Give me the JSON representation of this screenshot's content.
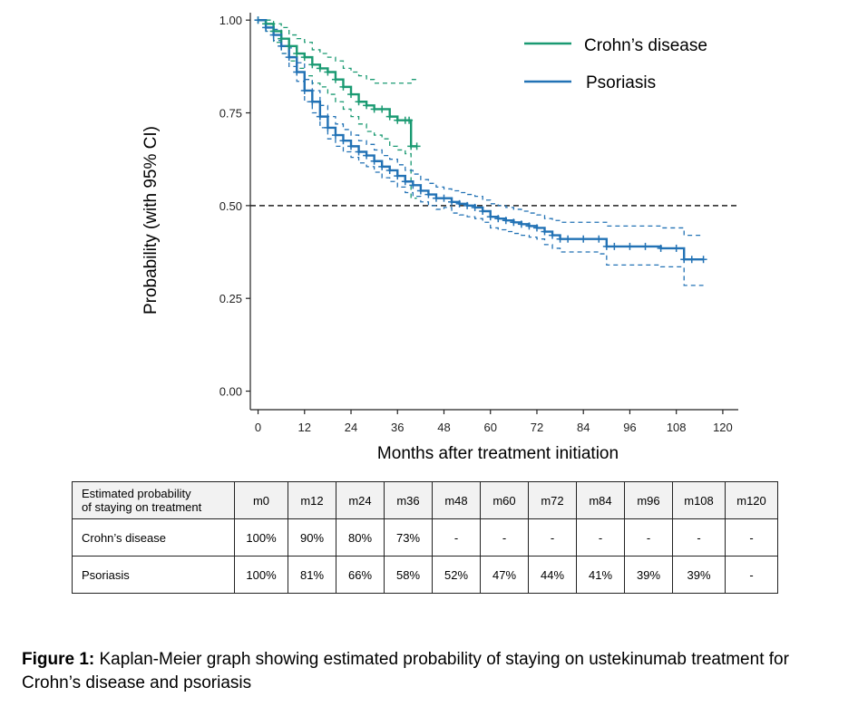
{
  "chart_data": {
    "type": "line",
    "title": "",
    "xlabel": "Months after treatment initiation",
    "ylabel": "Probability (with 95% CI)",
    "xlim": [
      -2,
      124
    ],
    "ylim": [
      -0.05,
      1.02
    ],
    "xticks": [
      0,
      12,
      24,
      36,
      48,
      60,
      72,
      84,
      96,
      108,
      120
    ],
    "yticks": [
      0.0,
      0.25,
      0.5,
      0.75,
      1.0
    ],
    "ytick_labels": [
      "0.00",
      "0.25",
      "0.50",
      "0.75",
      "1.00"
    ],
    "reference_line": {
      "y": 0.5,
      "style": "dashed",
      "color": "#222222"
    },
    "legend": {
      "placement": "top-right"
    },
    "series": [
      {
        "name": "Crohn’s disease",
        "color": "#1a9a72",
        "x": [
          0,
          2,
          4,
          6,
          8,
          10,
          12,
          14,
          16,
          18,
          20,
          22,
          24,
          26,
          28,
          30,
          32,
          34,
          36,
          38,
          39,
          39.5,
          41
        ],
        "y": [
          1.0,
          0.99,
          0.97,
          0.95,
          0.93,
          0.91,
          0.9,
          0.88,
          0.87,
          0.86,
          0.84,
          0.82,
          0.8,
          0.78,
          0.77,
          0.76,
          0.76,
          0.74,
          0.73,
          0.73,
          0.73,
          0.66,
          0.66
        ],
        "ci_upper": [
          1.0,
          1.0,
          0.99,
          0.98,
          0.96,
          0.95,
          0.94,
          0.92,
          0.91,
          0.9,
          0.89,
          0.87,
          0.86,
          0.85,
          0.84,
          0.83,
          0.83,
          0.83,
          0.83,
          0.83,
          0.83,
          0.84,
          0.84
        ],
        "ci_lower": [
          1.0,
          0.97,
          0.94,
          0.91,
          0.89,
          0.87,
          0.85,
          0.83,
          0.82,
          0.8,
          0.78,
          0.76,
          0.74,
          0.72,
          0.7,
          0.69,
          0.68,
          0.66,
          0.65,
          0.64,
          0.64,
          0.52,
          0.52
        ]
      },
      {
        "name": "Psoriasis",
        "color": "#2272b5",
        "x": [
          0,
          2,
          4,
          6,
          8,
          10,
          12,
          14,
          16,
          18,
          20,
          22,
          24,
          26,
          28,
          30,
          32,
          34,
          36,
          38,
          40,
          42,
          44,
          46,
          48,
          50,
          52,
          54,
          56,
          58,
          60,
          62,
          64,
          66,
          68,
          70,
          72,
          74,
          76,
          78,
          80,
          84,
          88,
          90,
          92,
          96,
          100,
          104,
          108,
          110,
          112,
          115
        ],
        "y": [
          1.0,
          0.98,
          0.96,
          0.93,
          0.9,
          0.86,
          0.81,
          0.78,
          0.74,
          0.71,
          0.69,
          0.675,
          0.66,
          0.645,
          0.635,
          0.62,
          0.605,
          0.595,
          0.58,
          0.565,
          0.555,
          0.54,
          0.53,
          0.52,
          0.52,
          0.51,
          0.505,
          0.5,
          0.495,
          0.485,
          0.47,
          0.465,
          0.46,
          0.455,
          0.45,
          0.445,
          0.44,
          0.43,
          0.42,
          0.41,
          0.41,
          0.41,
          0.41,
          0.39,
          0.39,
          0.39,
          0.39,
          0.385,
          0.385,
          0.355,
          0.355,
          0.355
        ],
        "ci_upper": [
          1.0,
          0.99,
          0.975,
          0.95,
          0.925,
          0.885,
          0.84,
          0.81,
          0.77,
          0.74,
          0.72,
          0.705,
          0.69,
          0.675,
          0.665,
          0.65,
          0.635,
          0.625,
          0.61,
          0.595,
          0.585,
          0.57,
          0.56,
          0.55,
          0.545,
          0.54,
          0.535,
          0.53,
          0.525,
          0.515,
          0.505,
          0.5,
          0.495,
          0.49,
          0.485,
          0.48,
          0.475,
          0.465,
          0.46,
          0.455,
          0.455,
          0.455,
          0.455,
          0.445,
          0.445,
          0.445,
          0.445,
          0.44,
          0.44,
          0.42,
          0.42,
          0.42
        ],
        "ci_lower": [
          1.0,
          0.97,
          0.945,
          0.91,
          0.875,
          0.835,
          0.78,
          0.75,
          0.71,
          0.68,
          0.66,
          0.645,
          0.63,
          0.615,
          0.605,
          0.59,
          0.575,
          0.565,
          0.55,
          0.535,
          0.525,
          0.51,
          0.5,
          0.49,
          0.495,
          0.48,
          0.475,
          0.47,
          0.465,
          0.455,
          0.44,
          0.435,
          0.43,
          0.425,
          0.42,
          0.415,
          0.41,
          0.395,
          0.385,
          0.375,
          0.375,
          0.375,
          0.37,
          0.34,
          0.34,
          0.34,
          0.34,
          0.335,
          0.335,
          0.285,
          0.285,
          0.285
        ]
      }
    ]
  },
  "table": {
    "header_label": [
      "Estimated probability",
      "of staying on treatment"
    ],
    "columns": [
      "m0",
      "m12",
      "m24",
      "m36",
      "m48",
      "m60",
      "m72",
      "m84",
      "m96",
      "m108",
      "m120"
    ],
    "rows": [
      {
        "label": "Crohn’s disease",
        "values": [
          "100%",
          "90%",
          "80%",
          "73%",
          "-",
          "-",
          "-",
          "-",
          "-",
          "-",
          "-"
        ]
      },
      {
        "label": "Psoriasis",
        "values": [
          "100%",
          "81%",
          "66%",
          "58%",
          "52%",
          "47%",
          "44%",
          "41%",
          "39%",
          "39%",
          "-"
        ]
      }
    ]
  },
  "caption": {
    "prefix": "Figure 1:",
    "text": " Kaplan-Meier graph showing estimated probability of staying on ustekinumab treatment for Crohn’s disease and psoriasis"
  }
}
